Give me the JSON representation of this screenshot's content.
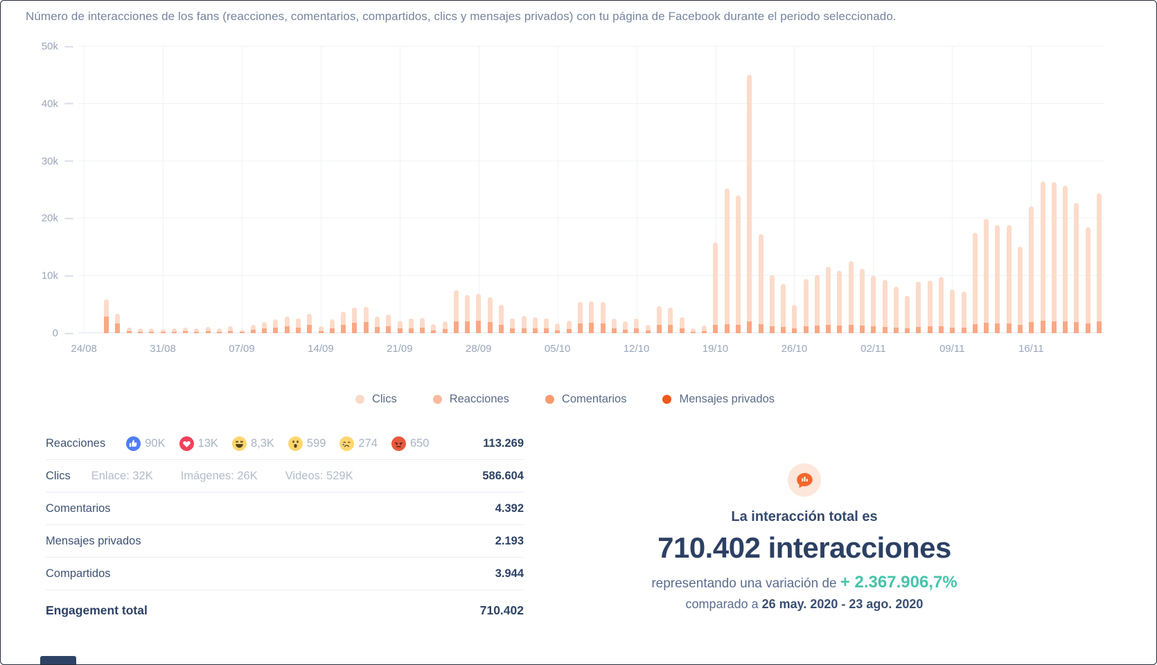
{
  "title": "Número de interacciones de los fans (reacciones, comentarios, compartidos, clics y mensajes privados) con tu página de Facebook durante el periodo seleccionado.",
  "chart_data": {
    "type": "bar",
    "stacked": true,
    "ylim": [
      0,
      50000
    ],
    "y_tick_labels": [
      "0",
      "10k",
      "20k",
      "30k",
      "40k",
      "50k"
    ],
    "x_tick_labels": [
      "24/08",
      "31/08",
      "07/09",
      "14/09",
      "21/09",
      "28/09",
      "05/10",
      "12/10",
      "19/10",
      "26/10",
      "02/11",
      "09/11",
      "16/11"
    ],
    "days": 91,
    "tick_interval_days": 7,
    "grid": true,
    "legend_position": "bottom",
    "legend": [
      {
        "label": "Clics",
        "color": "#fbd9c8"
      },
      {
        "label": "Reacciones",
        "color": "#fbb99d"
      },
      {
        "label": "Comentarios",
        "color": "#fa9a6e"
      },
      {
        "label": "Mensajes privados",
        "color": "#f4581c"
      }
    ],
    "series": [
      {
        "name": "Reacciones",
        "color": "#f9a885",
        "values": [
          0,
          0,
          2900,
          1700,
          400,
          300,
          300,
          250,
          300,
          350,
          300,
          400,
          300,
          400,
          200,
          600,
          800,
          1000,
          1200,
          1000,
          1400,
          400,
          900,
          1500,
          1800,
          1900,
          1100,
          1200,
          800,
          900,
          1000,
          500,
          700,
          2100,
          2000,
          2200,
          1900,
          1500,
          800,
          900,
          900,
          800,
          500,
          700,
          1700,
          1800,
          1700,
          800,
          600,
          800,
          500,
          1500,
          1400,
          900,
          300,
          400,
          1400,
          1600,
          1500,
          2000,
          1600,
          1200,
          1100,
          900,
          1200,
          1300,
          1400,
          1300,
          1500,
          1300,
          1200,
          1100,
          1000,
          900,
          1100,
          1200,
          1200,
          1000,
          1000,
          1600,
          1800,
          1700,
          1700,
          1500,
          1900,
          2200,
          2100,
          2000,
          1900,
          1700,
          2000
        ]
      },
      {
        "name": "Clics",
        "color": "#fcdbca",
        "values": [
          0,
          0,
          3000,
          1700,
          600,
          600,
          500,
          450,
          600,
          650,
          600,
          700,
          600,
          800,
          400,
          900,
          1100,
          1400,
          1700,
          1600,
          2000,
          800,
          1500,
          2200,
          2700,
          2700,
          1800,
          2100,
          1400,
          1700,
          1700,
          1100,
          1400,
          5400,
          4700,
          4700,
          4400,
          3500,
          1800,
          2100,
          1900,
          1800,
          1200,
          1500,
          3700,
          3800,
          3700,
          1700,
          1500,
          1700,
          1000,
          3200,
          3100,
          1900,
          600,
          900,
          14400,
          23700,
          22500,
          43000,
          15700,
          8900,
          7500,
          4100,
          8200,
          8900,
          10200,
          9600,
          11100,
          9900,
          8800,
          8200,
          7100,
          5600,
          7900,
          8000,
          8600,
          6600,
          6300,
          15900,
          18100,
          17200,
          17100,
          13600,
          20200,
          24200,
          24200,
          23700,
          20800,
          16800,
          22400
        ]
      }
    ]
  },
  "summary_table": {
    "rows": [
      {
        "label": "Reacciones",
        "value": "113.269",
        "reactions": [
          {
            "icon": "like-reaction-icon",
            "count": "90K"
          },
          {
            "icon": "love-reaction-icon",
            "count": "13K"
          },
          {
            "icon": "haha-reaction-icon",
            "count": "8,3K"
          },
          {
            "icon": "wow-reaction-icon",
            "count": "599"
          },
          {
            "icon": "sad-reaction-icon",
            "count": "274"
          },
          {
            "icon": "angry-reaction-icon",
            "count": "650"
          }
        ]
      },
      {
        "label": "Clics",
        "value": "586.604",
        "details": [
          "Enlace: 32K",
          "Imágenes: 26K",
          "Videos: 529K"
        ]
      },
      {
        "label": "Comentarios",
        "value": "4.392"
      },
      {
        "label": "Mensajes privados",
        "value": "2.193"
      },
      {
        "label": "Compartidos",
        "value": "3.944"
      },
      {
        "label": "Engagement total",
        "value": "710.402"
      }
    ]
  },
  "total_panel": {
    "icon": "chat-chart-icon",
    "heading": "La interacción total es",
    "total": "710.402 interacciones",
    "variation_prefix": "representando una variación de ",
    "variation_value": "+ 2.367.906,7%",
    "variation_color": "#47c3ab",
    "compare_prefix": "comparado a ",
    "compare_range": "26 may. 2020 - 23 ago. 2020"
  },
  "colors": {
    "accent_orange": "#f4662c",
    "navy": "#2d4265",
    "teal": "#47c3ab",
    "muted_text": "#b3bcca",
    "axis_text": "#9aa5ba"
  }
}
